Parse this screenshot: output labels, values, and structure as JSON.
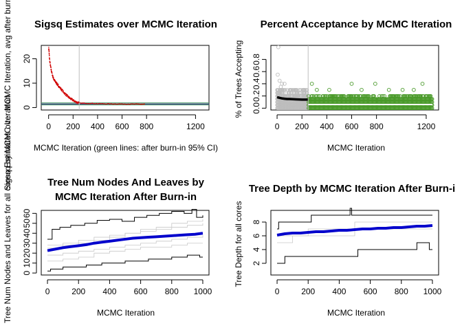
{
  "chart_data": [
    {
      "id": "sigsq",
      "type": "scatter",
      "title": [
        "Sigsq Estimates over MCMC Iteration"
      ],
      "xlabel": "MCMC Iteration (green lines: after burn-in 95% CI)",
      "ylabel": "Sigsq Estimates over MCMC Iteration, avg after burn-in =",
      "xlim": [
        -60,
        1310
      ],
      "ylim": [
        -1,
        25.5
      ],
      "xticks": [
        0,
        200,
        400,
        600,
        800,
        1200
      ],
      "yticks": [
        0,
        10,
        20
      ],
      "burn_in_line": 250,
      "hlines": [
        {
          "y": 1.9,
          "color": "#4a9a6a"
        },
        {
          "y": 1.1,
          "color": "#4a9a6a"
        },
        {
          "y": 1.45,
          "color": "#2a2a7a"
        }
      ],
      "series": [
        {
          "role": "burn-in",
          "color": "#d00000",
          "x": [
            1,
            3,
            6,
            10,
            15,
            20,
            25,
            30,
            35,
            40,
            45,
            50,
            55,
            60,
            65,
            70,
            75,
            80,
            90,
            100,
            110,
            120,
            130,
            140,
            150,
            160,
            170,
            180,
            190,
            200,
            210,
            220,
            230,
            240,
            250
          ],
          "y": [
            24.5,
            23.5,
            21,
            18.8,
            17.2,
            15.8,
            14.6,
            13.6,
            12.7,
            12.0,
            11.4,
            11.0,
            10.6,
            10.3,
            10.0,
            9.6,
            9.3,
            9.0,
            8.3,
            7.7,
            7.1,
            6.5,
            5.9,
            5.4,
            4.9,
            4.4,
            4.0,
            3.6,
            3.3,
            3.0,
            2.7,
            2.4,
            2.2,
            2.0,
            1.9
          ]
        },
        {
          "role": "after-burn-in",
          "color": "#d00000",
          "x": [
            260,
            300,
            350,
            400,
            450,
            500,
            550,
            600,
            650,
            700,
            750,
            790
          ],
          "y": [
            1.8,
            1.75,
            1.7,
            1.6,
            1.55,
            1.5,
            1.5,
            1.45,
            1.45,
            1.4,
            1.4,
            1.4
          ]
        }
      ]
    },
    {
      "id": "acceptance",
      "type": "scatter",
      "title": [
        "Percent Acceptance by MCMC Iteration"
      ],
      "xlabel": "MCMC Iteration",
      "ylabel": "% of Trees Accepting",
      "xlim": [
        -50,
        1300
      ],
      "ylim": [
        -0.03,
        1.03
      ],
      "xticks": [
        0,
        200,
        400,
        600,
        800,
        1200
      ],
      "yticks": [
        0.0,
        0.2,
        0.4,
        0.6,
        0.8
      ],
      "ytick_labels": [
        "0.0",
        "0.2",
        "0.4",
        "0.6",
        "0.8"
      ],
      "burn_in_line": 250,
      "colors": {
        "burn_in_points": "#bdbdbd",
        "after_points": "#4a9a2a",
        "running_avg": "#000000",
        "running_avg_after": "#ffffff"
      },
      "burn_in_levels": [
        0.0,
        0.05,
        0.1,
        0.15,
        0.2,
        0.25,
        0.3
      ],
      "after_levels": [
        0.0,
        0.05,
        0.1,
        0.15,
        0.2
      ],
      "sparse_points": [
        {
          "x": 10,
          "y": 1.0
        },
        {
          "x": 5,
          "y": 0.55
        },
        {
          "x": 20,
          "y": 0.45
        },
        {
          "x": 40,
          "y": 0.4
        },
        {
          "x": 30,
          "y": 0.35
        },
        {
          "x": 60,
          "y": 0.4
        },
        {
          "x": 280,
          "y": 0.4
        },
        {
          "x": 420,
          "y": 0.3
        },
        {
          "x": 600,
          "y": 0.4
        },
        {
          "x": 790,
          "y": 0.4
        },
        {
          "x": 1170,
          "y": 0.4
        },
        {
          "x": 1100,
          "y": 0.3
        },
        {
          "x": 900,
          "y": 0.3
        },
        {
          "x": 320,
          "y": 0.3
        },
        {
          "x": 680,
          "y": 0.3
        },
        {
          "x": 1010,
          "y": 0.3
        }
      ],
      "running_avg": {
        "x": [
          0,
          20,
          40,
          60,
          80,
          100,
          150,
          200,
          250
        ],
        "y": [
          0.18,
          0.17,
          0.16,
          0.155,
          0.15,
          0.15,
          0.145,
          0.14,
          0.14
        ]
      },
      "running_avg_after": {
        "x": [
          250,
          500,
          750,
          1000,
          1250
        ],
        "y": [
          0.06,
          0.06,
          0.06,
          0.06,
          0.06
        ]
      }
    },
    {
      "id": "nodes",
      "type": "line",
      "title": [
        "Tree Num Nodes And Leaves by",
        "MCMC Iteration After Burn-in"
      ],
      "xlabel": "MCMC Iteration",
      "ylabel": "Tree Num Nodes and Leaves for all coresq by MCMC Iteration",
      "xlim": [
        -40,
        1040
      ],
      "ylim": [
        -2,
        63
      ],
      "xticks": [
        0,
        200,
        400,
        600,
        800,
        1000
      ],
      "yticks": [
        0,
        10,
        20,
        30,
        40,
        50,
        60
      ],
      "series": [
        {
          "name": "max",
          "color": "#000000",
          "kind": "step",
          "x": [
            0,
            30,
            80,
            150,
            240,
            320,
            400,
            480,
            560,
            640,
            720,
            800,
            880,
            930,
            960,
            1000
          ],
          "y": [
            34,
            44,
            46,
            48,
            50,
            53,
            54,
            52,
            56,
            58,
            60,
            62,
            60,
            64,
            56,
            58
          ]
        },
        {
          "name": "min",
          "color": "#000000",
          "kind": "step",
          "x": [
            0,
            20,
            100,
            250,
            350,
            500,
            650,
            800,
            900,
            980,
            1000
          ],
          "y": [
            2,
            4,
            6,
            8,
            10,
            12,
            14,
            16,
            18,
            16,
            16
          ]
        },
        {
          "name": "avg",
          "color": "#0000cc",
          "kind": "thick",
          "x": [
            0,
            50,
            100,
            150,
            200,
            250,
            300,
            350,
            400,
            450,
            500,
            550,
            600,
            650,
            700,
            750,
            800,
            850,
            900,
            950,
            1000
          ],
          "y": [
            22.5,
            24,
            25.5,
            26.5,
            27.5,
            28.5,
            30,
            31,
            32,
            33,
            34,
            35,
            35.5,
            36,
            36.5,
            37,
            37.5,
            38,
            38.5,
            39,
            40
          ]
        },
        {
          "name": "core",
          "color": "#c8c8c8",
          "kind": "step",
          "x": [
            0,
            100,
            200,
            300,
            400,
            500,
            600,
            700,
            800,
            900,
            1000
          ],
          "y": [
            28,
            30,
            33,
            36,
            38,
            40,
            44,
            46,
            50,
            52,
            54
          ]
        },
        {
          "name": "core",
          "color": "#c8c8c8",
          "kind": "step",
          "x": [
            0,
            100,
            200,
            300,
            400,
            500,
            600,
            700,
            800,
            900,
            1000
          ],
          "y": [
            18,
            20,
            22,
            24,
            26,
            28,
            30,
            32,
            34,
            36,
            38
          ]
        },
        {
          "name": "core",
          "color": "#c8c8c8",
          "kind": "step",
          "x": [
            0,
            100,
            200,
            300,
            400,
            500,
            600,
            700,
            800,
            900,
            1000
          ],
          "y": [
            12,
            14,
            16,
            20,
            22,
            24,
            26,
            26,
            28,
            30,
            30
          ]
        },
        {
          "name": "core",
          "color": "#c8c8c8",
          "kind": "step",
          "x": [
            0,
            100,
            200,
            300,
            400,
            500,
            600,
            700,
            800,
            900,
            1000
          ],
          "y": [
            25,
            28,
            30,
            33,
            36,
            40,
            42,
            44,
            46,
            48,
            50
          ]
        }
      ]
    },
    {
      "id": "depth",
      "type": "line",
      "title": [
        "Tree Depth by MCMC Iteration After Burn-i"
      ],
      "xlabel": "MCMC Iteration",
      "ylabel": "Tree Depth for all cores",
      "xlim": [
        -40,
        1040
      ],
      "ylim": [
        0.3,
        9.7
      ],
      "xticks": [
        0,
        200,
        400,
        600,
        800,
        1000
      ],
      "yticks": [
        2,
        4,
        6,
        8
      ],
      "series": [
        {
          "name": "max",
          "color": "#000000",
          "kind": "step",
          "x": [
            0,
            10,
            20,
            200,
            220,
            460,
            470,
            480,
            1000
          ],
          "y": [
            7,
            8,
            8,
            8,
            9,
            9,
            10,
            9,
            9
          ]
        },
        {
          "name": "min",
          "color": "#000000",
          "kind": "step",
          "x": [
            0,
            10,
            50,
            510,
            520,
            900,
            980,
            1000
          ],
          "y": [
            2,
            2,
            3,
            3,
            4,
            5,
            4,
            4
          ]
        },
        {
          "name": "avg",
          "color": "#0000cc",
          "kind": "thick",
          "x": [
            0,
            50,
            100,
            150,
            200,
            250,
            300,
            350,
            400,
            450,
            500,
            550,
            600,
            650,
            700,
            750,
            800,
            850,
            900,
            950,
            1000
          ],
          "y": [
            6.1,
            6.3,
            6.4,
            6.4,
            6.5,
            6.6,
            6.6,
            6.7,
            6.8,
            6.8,
            6.9,
            7.0,
            7.0,
            7.1,
            7.1,
            7.2,
            7.2,
            7.3,
            7.4,
            7.4,
            7.5
          ]
        },
        {
          "name": "core",
          "color": "#c8c8c8",
          "kind": "step",
          "x": [
            0,
            100,
            200,
            300,
            400,
            500,
            600,
            700,
            800,
            900,
            1000
          ],
          "y": [
            6,
            6,
            7,
            7,
            7,
            8,
            8,
            8,
            8,
            8,
            8
          ]
        },
        {
          "name": "core",
          "color": "#c8c8c8",
          "kind": "step",
          "x": [
            0,
            100,
            200,
            300,
            400,
            500,
            600,
            700,
            800,
            900,
            1000
          ],
          "y": [
            5,
            6,
            6,
            6,
            6,
            7,
            7,
            7,
            7,
            7,
            7
          ]
        }
      ]
    }
  ]
}
